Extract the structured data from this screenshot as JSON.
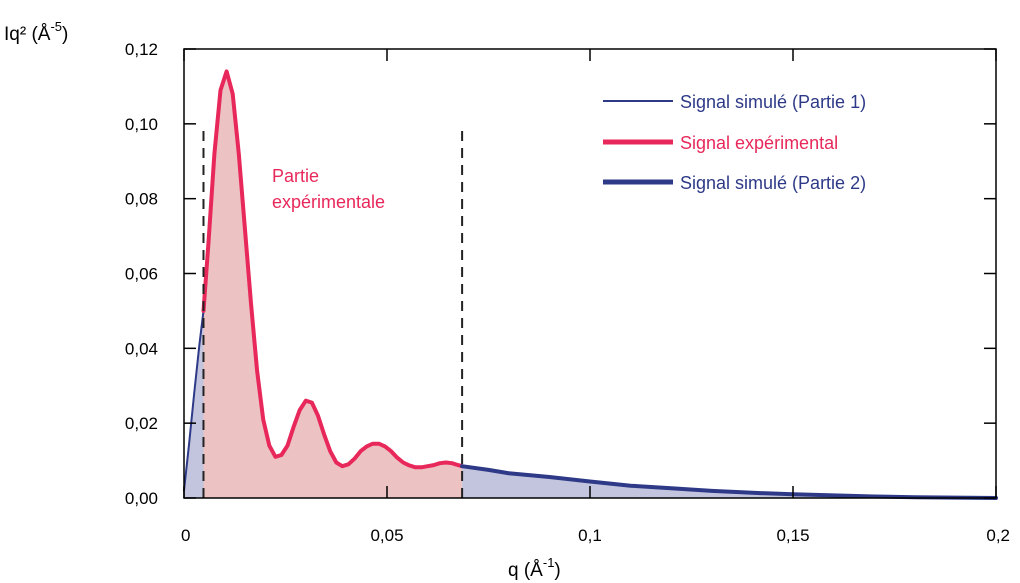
{
  "chart_data": {
    "type": "area",
    "xlabel_main": "q (Å",
    "xlabel_sup": "-1",
    "xlabel_close": ")",
    "ylabel_main": "Iq² (Å",
    "ylabel_sup": "-5",
    "ylabel_close": ")",
    "xlim": [
      0,
      0.2
    ],
    "ylim": [
      0,
      0.12
    ],
    "x_ticks": [
      {
        "value": 0,
        "label": "0"
      },
      {
        "value": 0.05,
        "label": "0,05"
      },
      {
        "value": 0.1,
        "label": "0,1"
      },
      {
        "value": 0.15,
        "label": "0,15"
      },
      {
        "value": 0.2,
        "label": "0,2"
      }
    ],
    "y_ticks": [
      {
        "value": 0,
        "label": "0,00"
      },
      {
        "value": 0.02,
        "label": "0,02"
      },
      {
        "value": 0.04,
        "label": "0,04"
      },
      {
        "value": 0.06,
        "label": "0,06"
      },
      {
        "value": 0.08,
        "label": "0,08"
      },
      {
        "value": 0.1,
        "label": "0,10"
      },
      {
        "value": 0.12,
        "label": "0,12"
      }
    ],
    "vlines": [
      0.0048,
      0.0685
    ],
    "annotation": {
      "line1": "Partie",
      "line2": "expérimentale",
      "x": 0.0215,
      "y": 0.088
    },
    "legend_position": "top-right",
    "series": [
      {
        "name": "Signal simulé (Partie 1)",
        "color": "#2e3a87",
        "fill": "#c3c5de",
        "width": 2,
        "points": [
          [
            0.0,
            0.002
          ],
          [
            0.0012,
            0.014
          ],
          [
            0.0025,
            0.028
          ],
          [
            0.0038,
            0.041
          ],
          [
            0.0048,
            0.05
          ]
        ]
      },
      {
        "name": "Signal expérimental",
        "color": "#e8285a",
        "fill": "#ecc2c2",
        "width": 4,
        "points": [
          [
            0.0048,
            0.05
          ],
          [
            0.006,
            0.068
          ],
          [
            0.0075,
            0.092
          ],
          [
            0.009,
            0.109
          ],
          [
            0.0105,
            0.114
          ],
          [
            0.012,
            0.108
          ],
          [
            0.0135,
            0.092
          ],
          [
            0.015,
            0.072
          ],
          [
            0.0165,
            0.052
          ],
          [
            0.018,
            0.034
          ],
          [
            0.0195,
            0.021
          ],
          [
            0.021,
            0.014
          ],
          [
            0.0225,
            0.011
          ],
          [
            0.024,
            0.0115
          ],
          [
            0.0255,
            0.014
          ],
          [
            0.027,
            0.019
          ],
          [
            0.0285,
            0.0235
          ],
          [
            0.03,
            0.026
          ],
          [
            0.0315,
            0.0255
          ],
          [
            0.033,
            0.022
          ],
          [
            0.0345,
            0.017
          ],
          [
            0.036,
            0.0125
          ],
          [
            0.0375,
            0.0095
          ],
          [
            0.039,
            0.0085
          ],
          [
            0.0405,
            0.009
          ],
          [
            0.042,
            0.0105
          ],
          [
            0.0435,
            0.0125
          ],
          [
            0.045,
            0.0138
          ],
          [
            0.0465,
            0.0145
          ],
          [
            0.048,
            0.0145
          ],
          [
            0.0495,
            0.0138
          ],
          [
            0.051,
            0.0125
          ],
          [
            0.0525,
            0.0108
          ],
          [
            0.054,
            0.0095
          ],
          [
            0.0555,
            0.0087
          ],
          [
            0.057,
            0.0082
          ],
          [
            0.0585,
            0.0082
          ],
          [
            0.06,
            0.0085
          ],
          [
            0.0615,
            0.0088
          ],
          [
            0.063,
            0.0093
          ],
          [
            0.0645,
            0.0095
          ],
          [
            0.066,
            0.0093
          ],
          [
            0.0675,
            0.0088
          ],
          [
            0.0685,
            0.0085
          ]
        ]
      },
      {
        "name": "Signal simulé (Partie 2)",
        "color": "#2e3a87",
        "fill": "#c3c5de",
        "width": 4,
        "points": [
          [
            0.0685,
            0.0085
          ],
          [
            0.075,
            0.0075
          ],
          [
            0.08,
            0.0066
          ],
          [
            0.09,
            0.0056
          ],
          [
            0.1,
            0.0044
          ],
          [
            0.11,
            0.0033
          ],
          [
            0.12,
            0.0026
          ],
          [
            0.13,
            0.0019
          ],
          [
            0.14,
            0.0014
          ],
          [
            0.15,
            0.001
          ],
          [
            0.16,
            0.0007
          ],
          [
            0.17,
            0.0004
          ],
          [
            0.18,
            0.0002
          ],
          [
            0.19,
            0.0001
          ],
          [
            0.2,
            0.0
          ]
        ]
      }
    ]
  }
}
